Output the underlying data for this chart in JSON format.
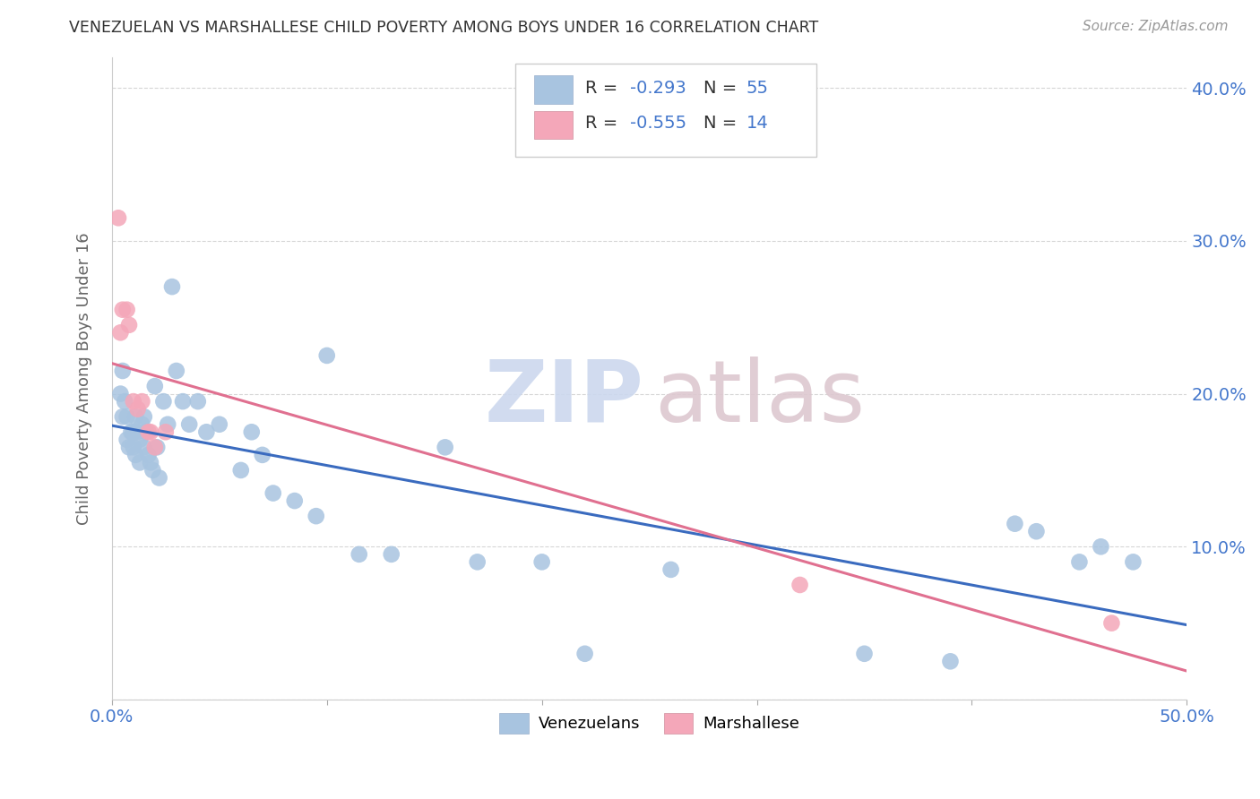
{
  "title": "VENEZUELAN VS MARSHALLESE CHILD POVERTY AMONG BOYS UNDER 16 CORRELATION CHART",
  "source": "Source: ZipAtlas.com",
  "ylabel": "Child Poverty Among Boys Under 16",
  "xlim": [
    0.0,
    0.5
  ],
  "ylim": [
    0.0,
    0.42
  ],
  "xticks": [
    0.0,
    0.1,
    0.2,
    0.3,
    0.4,
    0.5
  ],
  "yticks": [
    0.0,
    0.1,
    0.2,
    0.3,
    0.4
  ],
  "right_ytick_labels": [
    "",
    "10.0%",
    "20.0%",
    "30.0%",
    "40.0%"
  ],
  "left_ytick_labels": [
    "",
    "",
    "",
    "",
    ""
  ],
  "xtick_left_label": "0.0%",
  "xtick_right_label": "50.0%",
  "legend_r1_prefix": "R = ",
  "legend_r1_val": "-0.293",
  "legend_n1_prefix": "N = ",
  "legend_n1_val": "55",
  "legend_r2_prefix": "R = ",
  "legend_r2_val": "-0.555",
  "legend_n2_prefix": "N = ",
  "legend_n2_val": "14",
  "blue_color": "#a8c4e0",
  "pink_color": "#f4a7b9",
  "blue_line_color": "#3a6bbf",
  "pink_line_color": "#e07090",
  "tick_color": "#4477cc",
  "watermark_zip_color": "#ccd8ee",
  "watermark_atlas_color": "#ddc8d0",
  "background_color": "#ffffff",
  "grid_color": "#cccccc",
  "venezuelan_x": [
    0.004,
    0.005,
    0.005,
    0.006,
    0.007,
    0.007,
    0.008,
    0.009,
    0.01,
    0.01,
    0.011,
    0.011,
    0.012,
    0.013,
    0.013,
    0.014,
    0.015,
    0.015,
    0.016,
    0.017,
    0.018,
    0.019,
    0.02,
    0.021,
    0.022,
    0.024,
    0.026,
    0.028,
    0.03,
    0.033,
    0.036,
    0.04,
    0.044,
    0.05,
    0.06,
    0.065,
    0.07,
    0.075,
    0.085,
    0.095,
    0.1,
    0.115,
    0.13,
    0.155,
    0.17,
    0.2,
    0.22,
    0.26,
    0.35,
    0.39,
    0.42,
    0.43,
    0.45,
    0.46,
    0.475
  ],
  "venezuelan_y": [
    0.2,
    0.185,
    0.215,
    0.195,
    0.17,
    0.185,
    0.165,
    0.175,
    0.175,
    0.165,
    0.185,
    0.16,
    0.175,
    0.155,
    0.17,
    0.18,
    0.165,
    0.185,
    0.175,
    0.16,
    0.155,
    0.15,
    0.205,
    0.165,
    0.145,
    0.195,
    0.18,
    0.27,
    0.215,
    0.195,
    0.18,
    0.195,
    0.175,
    0.18,
    0.15,
    0.175,
    0.16,
    0.135,
    0.13,
    0.12,
    0.225,
    0.095,
    0.095,
    0.165,
    0.09,
    0.09,
    0.03,
    0.085,
    0.03,
    0.025,
    0.115,
    0.11,
    0.09,
    0.1,
    0.09
  ],
  "marshallese_x": [
    0.003,
    0.004,
    0.005,
    0.007,
    0.008,
    0.01,
    0.012,
    0.014,
    0.017,
    0.018,
    0.02,
    0.025,
    0.32,
    0.465
  ],
  "marshallese_y": [
    0.315,
    0.24,
    0.255,
    0.255,
    0.245,
    0.195,
    0.19,
    0.195,
    0.175,
    0.175,
    0.165,
    0.175,
    0.075,
    0.05
  ],
  "bottom_legend_label1": "Venezuelans",
  "bottom_legend_label2": "Marshallese"
}
